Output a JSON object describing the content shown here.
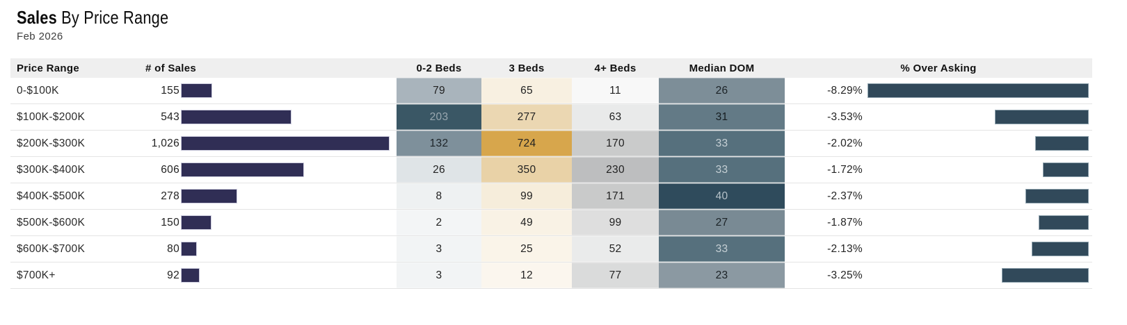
{
  "title": {
    "emphasis": "Sales",
    "rest": "By Price Range"
  },
  "subtitle": "Feb 2026",
  "columns": {
    "price_range": "Price Range",
    "sales": "# of Sales",
    "beds_0_2": "0-2 Beds",
    "beds_3": "3 Beds",
    "beds_4": "4+ Beds",
    "median_dom": "Median DOM",
    "over_asking": "% Over Asking"
  },
  "scales": {
    "sales_bar_color": "#302e55",
    "sales_bar_max": 1026,
    "over_asking_bar_color": "#31495a",
    "over_asking_bar_max": 8.29
  },
  "rows": [
    {
      "price_range": "0-$100K",
      "sales_label": "155",
      "sales_value": 155,
      "beds_0_2": {
        "label": "79",
        "bg": "#a9b4bc",
        "fg": "#222222"
      },
      "beds_3": {
        "label": "65",
        "bg": "#f8f0e1",
        "fg": "#222222"
      },
      "beds_4": {
        "label": "11",
        "bg": "#f8f8f8",
        "fg": "#222222"
      },
      "median_dom": {
        "label": "26",
        "bg": "#7d8e98",
        "fg": "#1b2226"
      },
      "over_asking_label": "-8.29%",
      "over_asking_value": -8.29
    },
    {
      "price_range": "$100K-$200K",
      "sales_label": "543",
      "sales_value": 543,
      "beds_0_2": {
        "label": "203",
        "bg": "#3a5765",
        "fg": "#9aa8b0"
      },
      "beds_3": {
        "label": "277",
        "bg": "#ebd7b2",
        "fg": "#222222"
      },
      "beds_4": {
        "label": "63",
        "bg": "#e9eaea",
        "fg": "#222222"
      },
      "median_dom": {
        "label": "31",
        "bg": "#637a86",
        "fg": "#161d21"
      },
      "over_asking_label": "-3.53%",
      "over_asking_value": -3.53
    },
    {
      "price_range": "$200K-$300K",
      "sales_label": "1,026",
      "sales_value": 1026,
      "beds_0_2": {
        "label": "132",
        "bg": "#7e909b",
        "fg": "#1d2428"
      },
      "beds_3": {
        "label": "724",
        "bg": "#d7a64c",
        "fg": "#222222"
      },
      "beds_4": {
        "label": "170",
        "bg": "#cacbcb",
        "fg": "#222222"
      },
      "median_dom": {
        "label": "33",
        "bg": "#56707d",
        "fg": "#c6d0d5"
      },
      "over_asking_label": "-2.02%",
      "over_asking_value": -2.02
    },
    {
      "price_range": "$300K-$400K",
      "sales_label": "606",
      "sales_value": 606,
      "beds_0_2": {
        "label": "26",
        "bg": "#dfe4e7",
        "fg": "#222222"
      },
      "beds_3": {
        "label": "350",
        "bg": "#e9d2a7",
        "fg": "#222222"
      },
      "beds_4": {
        "label": "230",
        "bg": "#bdbebf",
        "fg": "#222222"
      },
      "median_dom": {
        "label": "33",
        "bg": "#56707d",
        "fg": "#c6d0d5"
      },
      "over_asking_label": "-1.72%",
      "over_asking_value": -1.72
    },
    {
      "price_range": "$400K-$500K",
      "sales_label": "278",
      "sales_value": 278,
      "beds_0_2": {
        "label": "8",
        "bg": "#eef1f2",
        "fg": "#222222"
      },
      "beds_3": {
        "label": "99",
        "bg": "#f6eddb",
        "fg": "#222222"
      },
      "beds_4": {
        "label": "171",
        "bg": "#c9caca",
        "fg": "#222222"
      },
      "median_dom": {
        "label": "40",
        "bg": "#2f4b5c",
        "fg": "#b6c2c9"
      },
      "over_asking_label": "-2.37%",
      "over_asking_value": -2.37
    },
    {
      "price_range": "$500K-$600K",
      "sales_label": "150",
      "sales_value": 150,
      "beds_0_2": {
        "label": "2",
        "bg": "#f3f5f6",
        "fg": "#222222"
      },
      "beds_3": {
        "label": "49",
        "bg": "#f9f2e5",
        "fg": "#222222"
      },
      "beds_4": {
        "label": "99",
        "bg": "#dedede",
        "fg": "#222222"
      },
      "median_dom": {
        "label": "27",
        "bg": "#798a94",
        "fg": "#1b2226"
      },
      "over_asking_label": "-1.87%",
      "over_asking_value": -1.87
    },
    {
      "price_range": "$600K-$700K",
      "sales_label": "80",
      "sales_value": 80,
      "beds_0_2": {
        "label": "3",
        "bg": "#f2f4f5",
        "fg": "#222222"
      },
      "beds_3": {
        "label": "25",
        "bg": "#faf4e9",
        "fg": "#222222"
      },
      "beds_4": {
        "label": "52",
        "bg": "#eaebeb",
        "fg": "#222222"
      },
      "median_dom": {
        "label": "33",
        "bg": "#56707d",
        "fg": "#c6d0d5"
      },
      "over_asking_label": "-2.13%",
      "over_asking_value": -2.13
    },
    {
      "price_range": "$700K+",
      "sales_label": "92",
      "sales_value": 92,
      "beds_0_2": {
        "label": "3",
        "bg": "#f2f4f5",
        "fg": "#222222"
      },
      "beds_3": {
        "label": "12",
        "bg": "#fbf6ee",
        "fg": "#222222"
      },
      "beds_4": {
        "label": "77",
        "bg": "#dadbdb",
        "fg": "#222222"
      },
      "median_dom": {
        "label": "23",
        "bg": "#8b99a2",
        "fg": "#1b2226"
      },
      "over_asking_label": "-3.25%",
      "over_asking_value": -3.25
    }
  ],
  "chart_data": {
    "type": "table",
    "title": "Sales By Price Range",
    "subtitle": "Feb 2026",
    "columns": [
      "Price Range",
      "# of Sales",
      "0-2 Beds",
      "3 Beds",
      "4+ Beds",
      "Median DOM",
      "% Over Asking"
    ],
    "rows": [
      [
        "0-$100K",
        155,
        79,
        65,
        11,
        26,
        -8.29
      ],
      [
        "$100K-$200K",
        543,
        203,
        277,
        63,
        31,
        -3.53
      ],
      [
        "$200K-$300K",
        1026,
        132,
        724,
        170,
        33,
        -2.02
      ],
      [
        "$300K-$400K",
        606,
        26,
        350,
        230,
        33,
        -1.72
      ],
      [
        "$400K-$500K",
        278,
        8,
        99,
        171,
        40,
        -2.37
      ],
      [
        "$500K-$600K",
        150,
        2,
        49,
        99,
        27,
        -1.87
      ],
      [
        "$600K-$700K",
        80,
        3,
        25,
        52,
        33,
        -2.13
      ],
      [
        "$700K+",
        92,
        3,
        12,
        77,
        23,
        -3.25
      ]
    ],
    "notes": {
      "sales_bars": "navy horizontal bars scaled to # of Sales, max 1026",
      "over_asking_bars": "right-aligned slate bars scaled to |% Over Asking|, max 8.29",
      "heatmaps": "0-2 Beds blue-slate scale, 3 Beds gold scale, 4+ Beds gray scale, Median DOM slate scale"
    },
    "legend_position": "none",
    "grid": false
  }
}
